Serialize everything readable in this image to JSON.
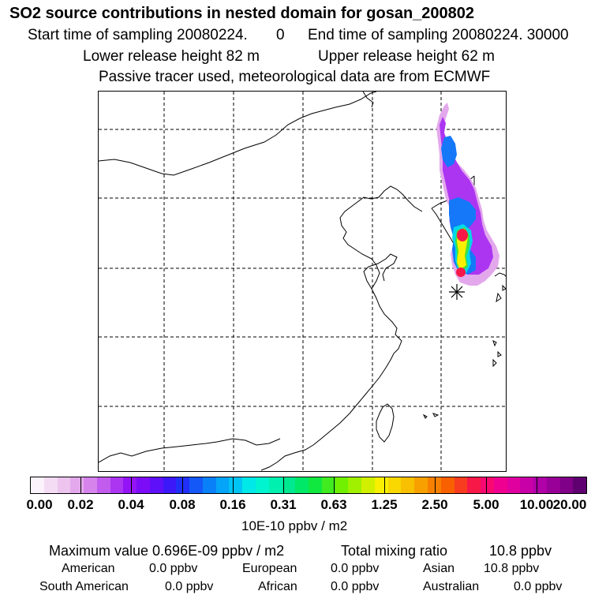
{
  "header": {
    "title": "SO2 source contributions in nested domain for gosan_200802",
    "start_label": "Start time of sampling 20080224.",
    "start_hour": "0",
    "end_label": "End time of sampling 20080224. 30000",
    "lower_release": "Lower release height   82 m",
    "upper_release": "Upper release height   62 m",
    "tracer_note": "Passive tracer used, meteorological data are from ECMWF"
  },
  "colorbar": {
    "colors": [
      "#fbf2fb",
      "#f4dcf4",
      "#ecc4ee",
      "#e3a8ec",
      "#d684ec",
      "#c25cee",
      "#ac35f2",
      "#9414f6",
      "#7c0cf8",
      "#5e10f8",
      "#3c18f8",
      "#2030f8",
      "#1458f8",
      "#0a80f8",
      "#04a4f8",
      "#00c4f4",
      "#00e8e8",
      "#00f4d0",
      "#00f0b0",
      "#00e890",
      "#00e868",
      "#10e840",
      "#40ec20",
      "#70f000",
      "#a0f000",
      "#d0f000",
      "#f8f000",
      "#f8d800",
      "#f8c000",
      "#f8a000",
      "#f88000",
      "#f86000",
      "#f83c20",
      "#f81848",
      "#f80870",
      "#f00090",
      "#e000a0",
      "#c800a8",
      "#b000a8",
      "#980098",
      "#800088",
      "#600070"
    ],
    "ticks": [
      "0.00",
      "0.02",
      "0.04",
      "0.08",
      "0.16",
      "0.31",
      "0.63",
      "1.25",
      "2.50",
      "5.00",
      "10.00",
      "20.00"
    ],
    "units": "10E-10 ppbv / m2"
  },
  "stats": {
    "maximum": "Maximum value  0.696E-09 ppbv / m2",
    "total": "Total mixing ratio",
    "total_value": "10.8 ppbv",
    "regions": [
      {
        "name": "American",
        "value": "0.0 ppbv"
      },
      {
        "name": "European",
        "value": "0.0 ppbv"
      },
      {
        "name": "Asian",
        "value": "10.8 ppbv"
      },
      {
        "name": "South American",
        "value": "0.0 ppbv"
      },
      {
        "name": "African",
        "value": "0.0 ppbv"
      },
      {
        "name": "Australian",
        "value": "0.0 ppbv"
      }
    ]
  },
  "map": {
    "plume_colors": {
      "outer": "#e3a8ec",
      "mid": "#ac35f2",
      "blue": "#1478f8",
      "cyan": "#00d8e8",
      "green": "#40e040",
      "yellow": "#f8f000",
      "red": "#f81848"
    },
    "station_marker": "receptor-marker"
  }
}
